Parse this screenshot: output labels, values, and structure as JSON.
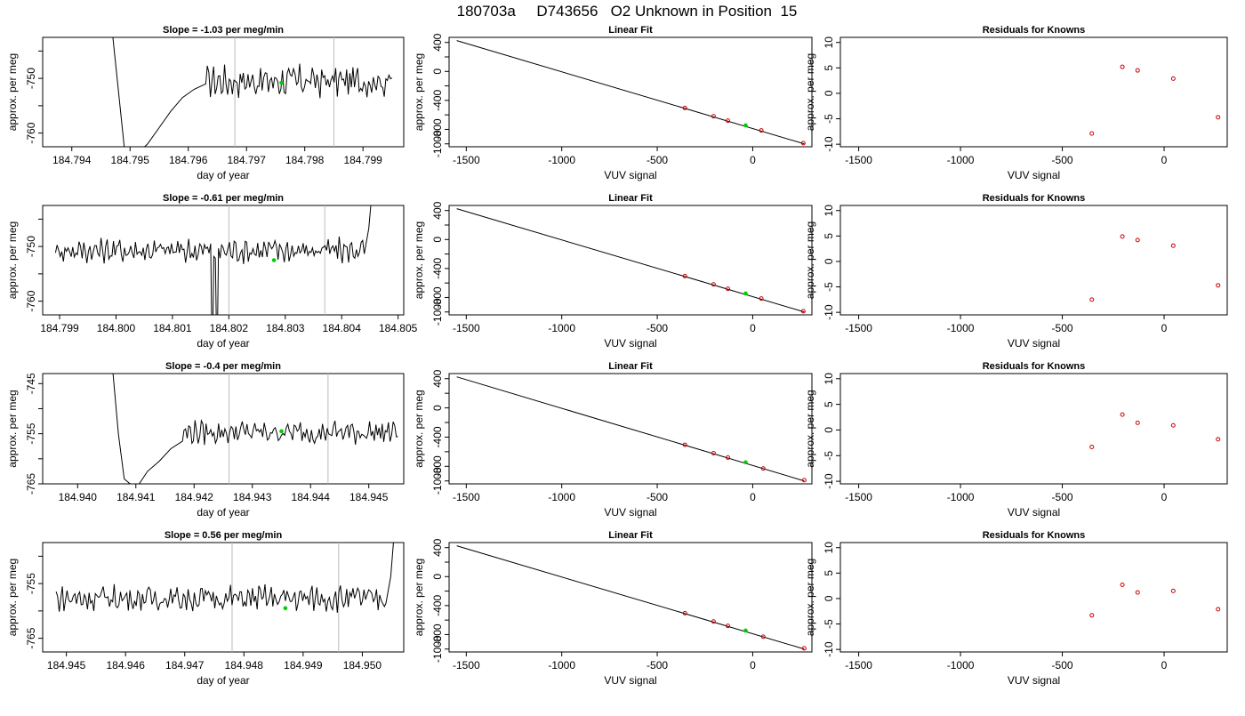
{
  "page_title": "180703a     D743656   O2 Unknown in Position  15",
  "colors": {
    "axis": "#000000",
    "series": "#000000",
    "marker_unknown": "#00cc00",
    "marker_known": "#cc0000",
    "cycle_line": "#bbbbbb"
  },
  "chart_data": [
    {
      "type": "line",
      "row": 0,
      "col": 0,
      "title": "Slope =  -1.03  per meg/min",
      "xlabel": "day of year",
      "ylabel": "approx. per meg",
      "xlim": [
        184.7935,
        184.7997
      ],
      "ylim": [
        -762.5,
        -742.5
      ],
      "xticks": [
        184.794,
        184.795,
        184.796,
        184.797,
        184.798,
        184.799
      ],
      "xtick_labels": [
        "184.794",
        "184.795",
        "184.796",
        "184.797",
        "184.798",
        "184.799"
      ],
      "yticks": [
        -760,
        -755,
        -750,
        -745
      ],
      "ytick_labels": [
        "-760",
        "",
        "-750",
        ""
      ],
      "vlines": [
        184.7968,
        184.7985
      ],
      "series_x_range": [
        184.7947,
        184.7995
      ],
      "series": [
        {
          "x": 184.7947,
          "y": -742.0
        },
        {
          "x": 184.7949,
          "y": -762.5
        },
        {
          "x": 184.7951,
          "y": -764.0
        },
        {
          "x": 184.7953,
          "y": -762.0
        },
        {
          "x": 184.7955,
          "y": -759.0
        },
        {
          "x": 184.7957,
          "y": -756.0
        },
        {
          "x": 184.7959,
          "y": -753.5
        },
        {
          "x": 184.7961,
          "y": -752.0
        },
        {
          "x": 184.7963,
          "y": -751.0
        }
      ],
      "noise_mean": -750.5,
      "noise_amp": 2.2,
      "unknown_point": {
        "x": 184.7976,
        "y": -750.8
      }
    },
    {
      "type": "line",
      "row": 1,
      "col": 0,
      "title": "Slope =  -0.61  per meg/min",
      "xlabel": "day of year",
      "ylabel": "approx. per meg",
      "xlim": [
        184.7987,
        184.8051
      ],
      "ylim": [
        -762.5,
        -742.5
      ],
      "xticks": [
        184.799,
        184.8,
        184.801,
        184.802,
        184.803,
        184.804,
        184.805
      ],
      "xtick_labels": [
        "184.799",
        "184.800",
        "184.801",
        "184.802",
        "184.803",
        "184.804",
        "184.805"
      ],
      "yticks": [
        -760,
        -755,
        -750,
        -745
      ],
      "ytick_labels": [
        "-760",
        "",
        "-750",
        ""
      ],
      "vlines": [
        184.802,
        184.8037
      ],
      "series_x_range": [
        184.7989,
        184.8046
      ],
      "series": [],
      "noise_mean": -750.7,
      "noise_amp": 1.8,
      "spikes_down": [
        184.8017,
        184.8018
      ],
      "tail_up": [
        184.8044,
        184.8046
      ],
      "unknown_point": {
        "x": 184.8028,
        "y": -752.5
      }
    },
    {
      "type": "line",
      "row": 2,
      "col": 0,
      "title": "Slope =  -0.4  per meg/min",
      "xlabel": "day of year",
      "ylabel": "approx. per meg",
      "xlim": [
        184.9394,
        184.9456
      ],
      "ylim": [
        -765,
        -743
      ],
      "xticks": [
        184.94,
        184.941,
        184.942,
        184.943,
        184.944,
        184.945
      ],
      "xtick_labels": [
        "184.940",
        "184.941",
        "184.942",
        "184.943",
        "184.944",
        "184.945"
      ],
      "yticks": [
        -765,
        -760,
        -755,
        -750,
        -745
      ],
      "ytick_labels": [
        "-765",
        "",
        "-755",
        "",
        "-745"
      ],
      "vlines": [
        184.9426,
        184.9443
      ],
      "series_x_range": [
        184.9406,
        184.9455
      ],
      "series": [
        {
          "x": 184.9406,
          "y": -742.0
        },
        {
          "x": 184.9407,
          "y": -755.0
        },
        {
          "x": 184.9408,
          "y": -764.0
        },
        {
          "x": 184.941,
          "y": -766.0
        },
        {
          "x": 184.9412,
          "y": -762.5
        },
        {
          "x": 184.9414,
          "y": -760.5
        },
        {
          "x": 184.9416,
          "y": -758.0
        },
        {
          "x": 184.9418,
          "y": -756.5
        }
      ],
      "noise_mean": -754.7,
      "noise_amp": 1.8,
      "unknown_point": {
        "x": 184.9435,
        "y": -754.5
      }
    },
    {
      "type": "line",
      "row": 3,
      "col": 0,
      "title": "Slope =  0.56  per meg/min",
      "xlabel": "day of year",
      "ylabel": "approx. per meg",
      "xlim": [
        184.9446,
        184.9507
      ],
      "ylim": [
        -767.5,
        -747.5
      ],
      "xticks": [
        184.945,
        184.946,
        184.947,
        184.948,
        184.949,
        184.95
      ],
      "xtick_labels": [
        "184.945",
        "184.946",
        "184.947",
        "184.948",
        "184.949",
        "184.950"
      ],
      "yticks": [
        -765,
        -760,
        -755,
        -750
      ],
      "ytick_labels": [
        "-765",
        "",
        "-755",
        ""
      ],
      "vlines": [
        184.9478,
        184.9496
      ],
      "series_x_range": [
        184.9448,
        184.9506
      ],
      "series": [],
      "noise_mean": -757.7,
      "noise_amp": 1.8,
      "tail_up": [
        184.9504,
        184.9506
      ],
      "unknown_point": {
        "x": 184.9487,
        "y": -759.5
      }
    },
    {
      "type": "scatter",
      "row": 0,
      "col": 1,
      "title": "Linear Fit",
      "xlabel": "VUV signal",
      "ylabel": "approx. per meg",
      "xlim": [
        -1590,
        310
      ],
      "ylim": [
        -1040,
        470
      ],
      "xticks": [
        -1500,
        -1000,
        -500,
        0
      ],
      "xtick_labels": [
        "-1500",
        "-1000",
        "-500",
        "0"
      ],
      "yticks": [
        400,
        200,
        0,
        -200,
        -400,
        -600,
        -800,
        -1000
      ],
      "ytick_labels": [
        "400",
        "",
        "0",
        "",
        "-400",
        "",
        "-800",
        "-1000"
      ],
      "fit_line": {
        "x": [
          -1550,
          270
        ],
        "y": [
          425,
          -1000
        ]
      },
      "knowns": [
        {
          "x": -355,
          "y": -505
        },
        {
          "x": -205,
          "y": -620
        },
        {
          "x": -130,
          "y": -680
        },
        {
          "x": 45,
          "y": -815
        },
        {
          "x": 265,
          "y": -990
        }
      ],
      "unknown": {
        "x": -37,
        "y": -745
      }
    },
    {
      "type": "scatter",
      "row": 1,
      "col": 1,
      "title": "Linear Fit",
      "xlabel": "VUV signal",
      "ylabel": "approx. per meg",
      "xlim": [
        -1590,
        310
      ],
      "ylim": [
        -1040,
        470
      ],
      "xticks": [
        -1500,
        -1000,
        -500,
        0
      ],
      "xtick_labels": [
        "-1500",
        "-1000",
        "-500",
        "0"
      ],
      "yticks": [
        400,
        200,
        0,
        -200,
        -400,
        -600,
        -800,
        -1000
      ],
      "ytick_labels": [
        "400",
        "",
        "0",
        "",
        "-400",
        "",
        "-800",
        "-1000"
      ],
      "fit_line": {
        "x": [
          -1550,
          270
        ],
        "y": [
          425,
          -1000
        ]
      },
      "knowns": [
        {
          "x": -355,
          "y": -505
        },
        {
          "x": -205,
          "y": -620
        },
        {
          "x": -130,
          "y": -680
        },
        {
          "x": 45,
          "y": -815
        },
        {
          "x": 265,
          "y": -990
        }
      ],
      "unknown": {
        "x": -37,
        "y": -745
      }
    },
    {
      "type": "scatter",
      "row": 2,
      "col": 1,
      "title": "Linear Fit",
      "xlabel": "VUV signal",
      "ylabel": "approx. per meg",
      "xlim": [
        -1590,
        310
      ],
      "ylim": [
        -1040,
        470
      ],
      "xticks": [
        -1500,
        -1000,
        -500,
        0
      ],
      "xtick_labels": [
        "-1500",
        "-1000",
        "-500",
        "0"
      ],
      "yticks": [
        400,
        200,
        0,
        -200,
        -400,
        -600,
        -800,
        -1000
      ],
      "ytick_labels": [
        "400",
        "",
        "0",
        "",
        "-400",
        "",
        "-800",
        "-1000"
      ],
      "fit_line": {
        "x": [
          -1550,
          270
        ],
        "y": [
          425,
          -1000
        ]
      },
      "knowns": [
        {
          "x": -355,
          "y": -505
        },
        {
          "x": -205,
          "y": -620
        },
        {
          "x": -130,
          "y": -680
        },
        {
          "x": 55,
          "y": -830
        },
        {
          "x": 270,
          "y": -990
        }
      ],
      "unknown": {
        "x": -37,
        "y": -745
      }
    },
    {
      "type": "scatter",
      "row": 3,
      "col": 1,
      "title": "Linear Fit",
      "xlabel": "VUV signal",
      "ylabel": "approx. per meg",
      "xlim": [
        -1590,
        310
      ],
      "ylim": [
        -1040,
        470
      ],
      "xticks": [
        -1500,
        -1000,
        -500,
        0
      ],
      "xtick_labels": [
        "-1500",
        "-1000",
        "-500",
        "0"
      ],
      "yticks": [
        400,
        200,
        0,
        -200,
        -400,
        -600,
        -800,
        -1000
      ],
      "ytick_labels": [
        "400",
        "",
        "0",
        "",
        "-400",
        "",
        "-800",
        "-1000"
      ],
      "fit_line": {
        "x": [
          -1550,
          270
        ],
        "y": [
          425,
          -1000
        ]
      },
      "knowns": [
        {
          "x": -355,
          "y": -505
        },
        {
          "x": -205,
          "y": -620
        },
        {
          "x": -130,
          "y": -680
        },
        {
          "x": 55,
          "y": -830
        },
        {
          "x": 270,
          "y": -990
        }
      ],
      "unknown": {
        "x": -37,
        "y": -745
      }
    },
    {
      "type": "scatter",
      "row": 0,
      "col": 2,
      "title": "Residuals for Knowns",
      "xlabel": "VUV signal",
      "ylabel": "approx. per meg",
      "xlim": [
        -1590,
        310
      ],
      "ylim": [
        -10.5,
        11
      ],
      "xticks": [
        -1500,
        -1000,
        -500,
        0
      ],
      "xtick_labels": [
        "-1500",
        "-1000",
        "-500",
        "0"
      ],
      "yticks": [
        10,
        5,
        0,
        -5,
        -10
      ],
      "ytick_labels": [
        "10",
        "5",
        "0",
        "-5",
        "-10"
      ],
      "points": [
        {
          "x": -355,
          "y": -7.9
        },
        {
          "x": -205,
          "y": 5.2
        },
        {
          "x": -130,
          "y": 4.5
        },
        {
          "x": 45,
          "y": 2.9
        },
        {
          "x": 265,
          "y": -4.7
        }
      ]
    },
    {
      "type": "scatter",
      "row": 1,
      "col": 2,
      "title": "Residuals for Knowns",
      "xlabel": "VUV signal",
      "ylabel": "approx. per meg",
      "xlim": [
        -1590,
        310
      ],
      "ylim": [
        -10.5,
        11
      ],
      "xticks": [
        -1500,
        -1000,
        -500,
        0
      ],
      "xtick_labels": [
        "-1500",
        "-1000",
        "-500",
        "0"
      ],
      "yticks": [
        10,
        5,
        0,
        -5,
        -10
      ],
      "ytick_labels": [
        "10",
        "5",
        "0",
        "-5",
        "-10"
      ],
      "points": [
        {
          "x": -355,
          "y": -7.5
        },
        {
          "x": -205,
          "y": 4.9
        },
        {
          "x": -130,
          "y": 4.2
        },
        {
          "x": 45,
          "y": 3.1
        },
        {
          "x": 265,
          "y": -4.7
        }
      ]
    },
    {
      "type": "scatter",
      "row": 2,
      "col": 2,
      "title": "Residuals for Knowns",
      "xlabel": "VUV signal",
      "ylabel": "approx. per meg",
      "xlim": [
        -1590,
        310
      ],
      "ylim": [
        -10.5,
        11
      ],
      "xticks": [
        -1500,
        -1000,
        -500,
        0
      ],
      "xtick_labels": [
        "-1500",
        "-1000",
        "-500",
        "0"
      ],
      "yticks": [
        10,
        5,
        0,
        -5,
        -10
      ],
      "ytick_labels": [
        "10",
        "5",
        "0",
        "-5",
        "-10"
      ],
      "points": [
        {
          "x": -355,
          "y": -3.3
        },
        {
          "x": -205,
          "y": 3.0
        },
        {
          "x": -130,
          "y": 1.4
        },
        {
          "x": 45,
          "y": 0.9
        },
        {
          "x": 265,
          "y": -1.8
        }
      ]
    },
    {
      "type": "scatter",
      "row": 3,
      "col": 2,
      "title": "Residuals for Knowns",
      "xlabel": "VUV signal",
      "ylabel": "approx. per meg",
      "xlim": [
        -1590,
        310
      ],
      "ylim": [
        -10.5,
        11
      ],
      "xticks": [
        -1500,
        -1000,
        -500,
        0
      ],
      "xtick_labels": [
        "-1500",
        "-1000",
        "-500",
        "0"
      ],
      "yticks": [
        10,
        5,
        0,
        -5,
        -10
      ],
      "ytick_labels": [
        "10",
        "5",
        "0",
        "-5",
        "-10"
      ],
      "points": [
        {
          "x": -355,
          "y": -3.3
        },
        {
          "x": -205,
          "y": 2.7
        },
        {
          "x": -130,
          "y": 1.2
        },
        {
          "x": 45,
          "y": 1.5
        },
        {
          "x": 265,
          "y": -2.1
        }
      ]
    }
  ]
}
